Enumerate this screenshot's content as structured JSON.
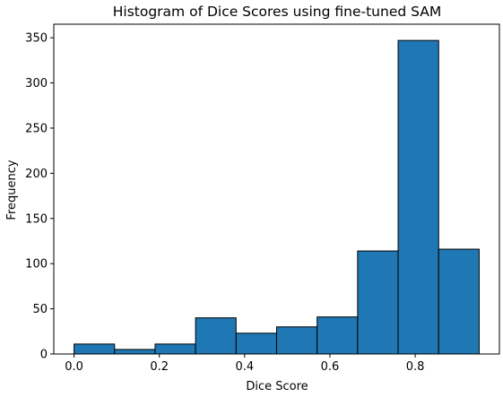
{
  "chart_data": {
    "type": "histogram",
    "title": "Histogram of Dice Scores using fine-tuned SAM",
    "xlabel": "Dice Score",
    "ylabel": "Frequency",
    "bin_edges": [
      0.0,
      0.095,
      0.19,
      0.285,
      0.38,
      0.475,
      0.57,
      0.665,
      0.76,
      0.855,
      0.95
    ],
    "values": [
      11,
      5,
      11,
      40,
      23,
      30,
      41,
      114,
      347,
      116
    ],
    "xlim": [
      -0.0475,
      0.9975
    ],
    "ylim": [
      0,
      365
    ],
    "xticks": [
      0.0,
      0.2,
      0.4,
      0.6,
      0.8
    ],
    "xtick_labels": [
      "0.0",
      "0.2",
      "0.4",
      "0.6",
      "0.8"
    ],
    "yticks": [
      0,
      50,
      100,
      150,
      200,
      250,
      300,
      350
    ],
    "ytick_labels": [
      "0",
      "50",
      "100",
      "150",
      "200",
      "250",
      "300",
      "350"
    ],
    "bar_color": "#1f77b4",
    "edge_color": "#000000",
    "grid": false,
    "legend": "none"
  }
}
